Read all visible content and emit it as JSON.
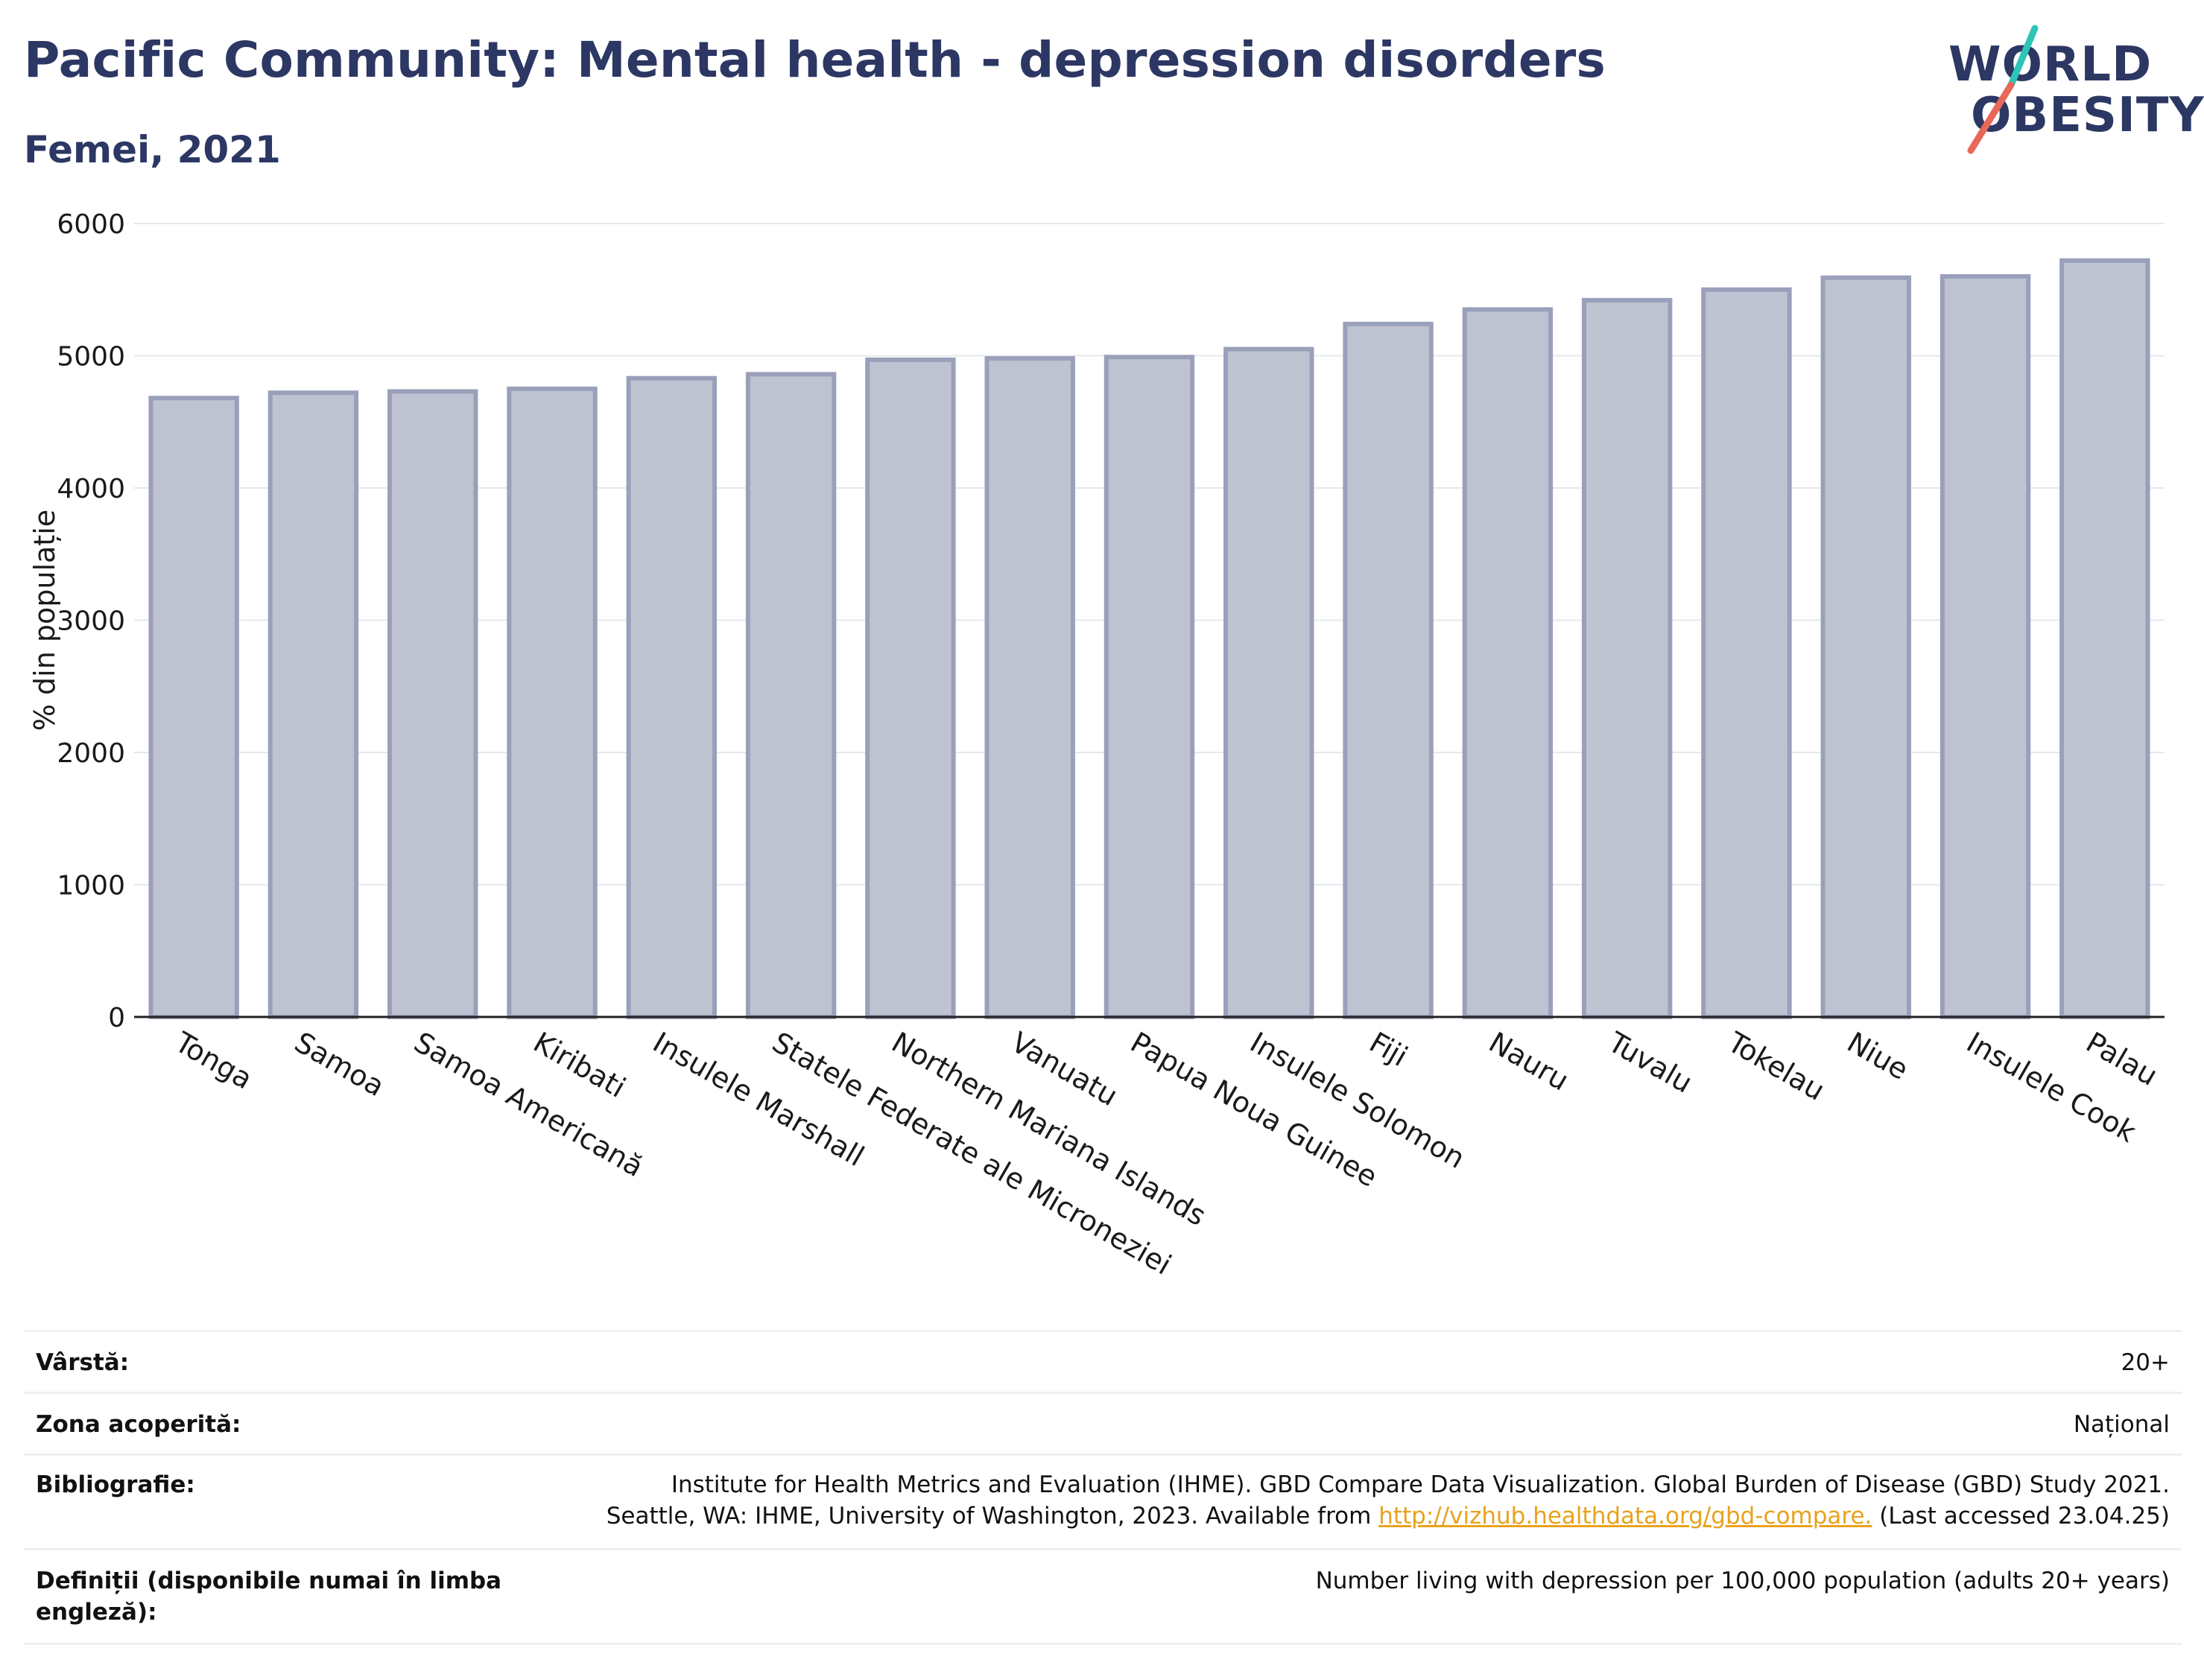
{
  "header": {
    "title": "Pacific Community: Mental health - depression disorders",
    "subtitle": "Femei, 2021"
  },
  "logo": {
    "line1": "WORLD",
    "line2": "OBESITY",
    "colors": {
      "text": "#2c3763",
      "slash_top": "#2ec4b6",
      "slash_bottom": "#e8685a"
    }
  },
  "chart_data": {
    "type": "bar",
    "ylabel": "% din populație",
    "ylim": [
      0,
      6000
    ],
    "yticks": [
      0,
      1000,
      2000,
      3000,
      4000,
      5000,
      6000
    ],
    "grid": true,
    "categories": [
      "Tonga",
      "Samoa",
      "Samoa Americană",
      "Kiribati",
      "Insulele Marshall",
      "Statele Federate ale Microneziei",
      "Northern Mariana Islands",
      "Vanuatu",
      "Papua Noua Guinee",
      "Insulele Solomon",
      "Fiji",
      "Nauru",
      "Tuvalu",
      "Tokelau",
      "Niue",
      "Insulele Cook",
      "Palau"
    ],
    "values": [
      4680,
      4720,
      4730,
      4750,
      4830,
      4860,
      4970,
      4980,
      4990,
      5050,
      5240,
      5350,
      5420,
      5500,
      5590,
      5600,
      5720
    ],
    "colors": {
      "bar_fill": "#bfc3d1",
      "bar_stroke": "#9aa0ba",
      "grid": "#e6e8ee",
      "axis": "#222222"
    }
  },
  "meta": {
    "rows": [
      {
        "label": "Vârstă:",
        "value": "20+"
      },
      {
        "label": "Zona acoperită:",
        "value": "Național"
      },
      {
        "label": "Bibliografie:",
        "value_line1": "Institute for Health Metrics and Evaluation (IHME). GBD Compare Data Visualization. Global Burden of Disease (GBD) Study 2021.",
        "value_line2_pre": "Seattle, WA: IHME, University of Washington, 2023. Available from ",
        "link": "http://vizhub.healthdata.org/gbd-compare.",
        "value_line2_post": " (Last accessed 23.04.25)"
      },
      {
        "label": "Definiții (disponibile numai în limba engleză):",
        "value": "Number living with depression per 100,000 population (adults 20+ years)"
      }
    ]
  }
}
